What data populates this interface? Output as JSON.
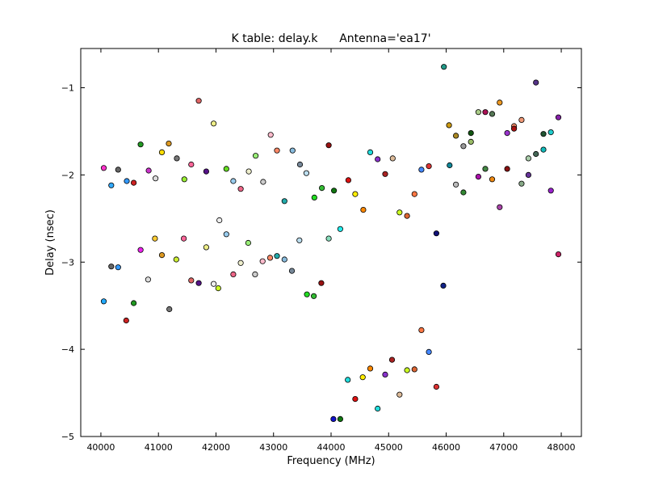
{
  "chart_data": {
    "type": "scatter",
    "title": "K table: delay.k      Antenna='ea17'",
    "xlabel": "Frequency (MHz)",
    "ylabel": "Delay (nsec)",
    "xlim": [
      39650,
      48350
    ],
    "ylim": [
      -5,
      -0.55
    ],
    "xticks": [
      40000,
      41000,
      42000,
      43000,
      44000,
      45000,
      46000,
      47000,
      48000
    ],
    "yticks": [
      -5,
      -4,
      -3,
      -2,
      -1
    ],
    "xtick_labels": [
      "40000",
      "41000",
      "42000",
      "43000",
      "44000",
      "45000",
      "46000",
      "47000",
      "48000"
    ],
    "ytick_labels": [
      "−5",
      "−4",
      "−3",
      "−2",
      "−1"
    ],
    "grid": false,
    "legend": "none",
    "points": [
      {
        "x": 40050,
        "y": -1.92,
        "color": "#ff33cc"
      },
      {
        "x": 40180,
        "y": -2.12,
        "color": "#33aaff"
      },
      {
        "x": 40300,
        "y": -1.94,
        "color": "#666666"
      },
      {
        "x": 40450,
        "y": -2.07,
        "color": "#3399ff"
      },
      {
        "x": 40570,
        "y": -2.09,
        "color": "#cc2222"
      },
      {
        "x": 40690,
        "y": -1.65,
        "color": "#229922"
      },
      {
        "x": 40830,
        "y": -1.95,
        "color": "#cc33cc"
      },
      {
        "x": 40950,
        "y": -2.04,
        "color": "#dddddd"
      },
      {
        "x": 41060,
        "y": -1.74,
        "color": "#ffdd00"
      },
      {
        "x": 41180,
        "y": -1.64,
        "color": "#dd9922"
      },
      {
        "x": 41320,
        "y": -1.81,
        "color": "#777777"
      },
      {
        "x": 41450,
        "y": -2.05,
        "color": "#99ee33"
      },
      {
        "x": 41570,
        "y": -1.88,
        "color": "#ff6699"
      },
      {
        "x": 41700,
        "y": -1.15,
        "color": "#e06666"
      },
      {
        "x": 41830,
        "y": -1.96,
        "color": "#551188"
      },
      {
        "x": 41960,
        "y": -1.41,
        "color": "#eeee88"
      },
      {
        "x": 42180,
        "y": -1.93,
        "color": "#66dd22"
      },
      {
        "x": 42300,
        "y": -2.07,
        "color": "#99ccee"
      },
      {
        "x": 42430,
        "y": -2.16,
        "color": "#ee6688"
      },
      {
        "x": 42570,
        "y": -1.96,
        "color": "#eeeecc"
      },
      {
        "x": 42690,
        "y": -1.78,
        "color": "#99ee77"
      },
      {
        "x": 42820,
        "y": -2.08,
        "color": "#cccccc"
      },
      {
        "x": 42950,
        "y": -1.54,
        "color": "#ffbbcc"
      },
      {
        "x": 43060,
        "y": -1.72,
        "color": "#ff8866"
      },
      {
        "x": 43190,
        "y": -2.3,
        "color": "#22aaaa"
      },
      {
        "x": 43330,
        "y": -1.72,
        "color": "#88bbdd"
      },
      {
        "x": 43460,
        "y": -1.88,
        "color": "#778899"
      },
      {
        "x": 43570,
        "y": -1.98,
        "color": "#bbddee"
      },
      {
        "x": 43710,
        "y": -2.26,
        "color": "#22dd22"
      },
      {
        "x": 43840,
        "y": -2.15,
        "color": "#33bb33"
      },
      {
        "x": 43960,
        "y": -1.66,
        "color": "#991111"
      },
      {
        "x": 44050,
        "y": -2.18,
        "color": "#117711"
      },
      {
        "x": 44300,
        "y": -2.06,
        "color": "#dd1111"
      },
      {
        "x": 44420,
        "y": -2.22,
        "color": "#ffee00"
      },
      {
        "x": 44560,
        "y": -2.4,
        "color": "#ff8800"
      },
      {
        "x": 44680,
        "y": -1.74,
        "color": "#22dddd"
      },
      {
        "x": 44810,
        "y": -1.82,
        "color": "#8833cc"
      },
      {
        "x": 44940,
        "y": -1.99,
        "color": "#aa2222"
      },
      {
        "x": 45070,
        "y": -1.81,
        "color": "#ddbb99"
      },
      {
        "x": 45190,
        "y": -2.43,
        "color": "#ccff22"
      },
      {
        "x": 45320,
        "y": -2.47,
        "color": "#dd6633"
      },
      {
        "x": 45450,
        "y": -2.22,
        "color": "#ff7744"
      },
      {
        "x": 45570,
        "y": -1.94,
        "color": "#4488ff"
      },
      {
        "x": 45700,
        "y": -1.9,
        "color": "#dd3333"
      },
      {
        "x": 45960,
        "y": -0.76,
        "color": "#229988"
      },
      {
        "x": 46050,
        "y": -1.43,
        "color": "#cc9911"
      },
      {
        "x": 46060,
        "y": -1.89,
        "color": "#118899"
      },
      {
        "x": 46170,
        "y": -1.55,
        "color": "#aa8822"
      },
      {
        "x": 46170,
        "y": -2.11,
        "color": "#bbbbbb"
      },
      {
        "x": 46300,
        "y": -1.67,
        "color": "#999999"
      },
      {
        "x": 46300,
        "y": -2.2,
        "color": "#338833"
      },
      {
        "x": 46430,
        "y": -1.52,
        "color": "#115511"
      },
      {
        "x": 46430,
        "y": -1.62,
        "color": "#99bb66"
      },
      {
        "x": 46560,
        "y": -1.28,
        "color": "#aacc88"
      },
      {
        "x": 46560,
        "y": -2.02,
        "color": "#aa11aa"
      },
      {
        "x": 46680,
        "y": -1.28,
        "color": "#aa1155"
      },
      {
        "x": 46680,
        "y": -1.93,
        "color": "#448844"
      },
      {
        "x": 46800,
        "y": -1.3,
        "color": "#557755"
      },
      {
        "x": 46800,
        "y": -2.05,
        "color": "#ee8811"
      },
      {
        "x": 46930,
        "y": -1.17,
        "color": "#ee9922"
      },
      {
        "x": 46930,
        "y": -2.37,
        "color": "#aa44aa"
      },
      {
        "x": 47060,
        "y": -1.52,
        "color": "#9933cc"
      },
      {
        "x": 47060,
        "y": -1.93,
        "color": "#881111"
      },
      {
        "x": 47180,
        "y": -1.44,
        "color": "#ee8866"
      },
      {
        "x": 47180,
        "y": -1.47,
        "color": "#aa1111"
      },
      {
        "x": 47310,
        "y": -1.37,
        "color": "#ee9977"
      },
      {
        "x": 47310,
        "y": -2.1,
        "color": "#88aa88"
      },
      {
        "x": 47430,
        "y": -1.81,
        "color": "#aaccaa"
      },
      {
        "x": 47430,
        "y": -2.0,
        "color": "#663399"
      },
      {
        "x": 47560,
        "y": -0.94,
        "color": "#553388"
      },
      {
        "x": 47560,
        "y": -1.76,
        "color": "#446655"
      },
      {
        "x": 47690,
        "y": -1.53,
        "color": "#225533"
      },
      {
        "x": 47690,
        "y": -1.71,
        "color": "#11bbbb"
      },
      {
        "x": 47820,
        "y": -1.51,
        "color": "#22cccc"
      },
      {
        "x": 47820,
        "y": -2.18,
        "color": "#9922cc"
      },
      {
        "x": 47950,
        "y": -1.34,
        "color": "#8822aa"
      },
      {
        "x": 47950,
        "y": -2.91,
        "color": "#cc2266"
      },
      {
        "x": 40050,
        "y": -3.45,
        "color": "#22aaff"
      },
      {
        "x": 40180,
        "y": -3.05,
        "color": "#666666"
      },
      {
        "x": 40300,
        "y": -3.06,
        "color": "#3399ff"
      },
      {
        "x": 40440,
        "y": -3.67,
        "color": "#cc2222"
      },
      {
        "x": 40570,
        "y": -3.47,
        "color": "#229922"
      },
      {
        "x": 40690,
        "y": -2.86,
        "color": "#ee22ee"
      },
      {
        "x": 40820,
        "y": -3.2,
        "color": "#dddddd"
      },
      {
        "x": 40940,
        "y": -2.73,
        "color": "#ffcc33"
      },
      {
        "x": 41060,
        "y": -2.92,
        "color": "#dd9922"
      },
      {
        "x": 41190,
        "y": -3.54,
        "color": "#777777"
      },
      {
        "x": 41310,
        "y": -2.97,
        "color": "#ccee33"
      },
      {
        "x": 41440,
        "y": -2.73,
        "color": "#ff6699"
      },
      {
        "x": 41570,
        "y": -3.21,
        "color": "#e06666"
      },
      {
        "x": 41700,
        "y": -3.24,
        "color": "#551188"
      },
      {
        "x": 41830,
        "y": -2.83,
        "color": "#eeee88"
      },
      {
        "x": 41960,
        "y": -3.25,
        "color": "#eeeeee"
      },
      {
        "x": 42040,
        "y": -3.3,
        "color": "#ccff22"
      },
      {
        "x": 42060,
        "y": -2.52,
        "color": "#eeeeee"
      },
      {
        "x": 42180,
        "y": -2.68,
        "color": "#99ccee"
      },
      {
        "x": 42300,
        "y": -3.14,
        "color": "#ee6688"
      },
      {
        "x": 42430,
        "y": -3.01,
        "color": "#eeeecc"
      },
      {
        "x": 42560,
        "y": -2.78,
        "color": "#99ee77"
      },
      {
        "x": 42680,
        "y": -3.14,
        "color": "#cccccc"
      },
      {
        "x": 42810,
        "y": -2.99,
        "color": "#ffbbcc"
      },
      {
        "x": 42940,
        "y": -2.95,
        "color": "#ff8866"
      },
      {
        "x": 43060,
        "y": -2.93,
        "color": "#22aaaa"
      },
      {
        "x": 43190,
        "y": -2.97,
        "color": "#88bbdd"
      },
      {
        "x": 43320,
        "y": -3.1,
        "color": "#778899"
      },
      {
        "x": 43450,
        "y": -2.75,
        "color": "#bbddee"
      },
      {
        "x": 43580,
        "y": -3.37,
        "color": "#22dd22"
      },
      {
        "x": 43700,
        "y": -3.39,
        "color": "#33bb33"
      },
      {
        "x": 43830,
        "y": -3.24,
        "color": "#991111"
      },
      {
        "x": 43960,
        "y": -2.73,
        "color": "#88ddbb"
      },
      {
        "x": 44040,
        "y": -4.8,
        "color": "#1111cc"
      },
      {
        "x": 44160,
        "y": -4.8,
        "color": "#117711"
      },
      {
        "x": 44160,
        "y": -2.62,
        "color": "#22eeee"
      },
      {
        "x": 44290,
        "y": -4.35,
        "color": "#22dddd"
      },
      {
        "x": 44420,
        "y": -4.57,
        "color": "#dd1111"
      },
      {
        "x": 44550,
        "y": -4.32,
        "color": "#ffee00"
      },
      {
        "x": 44680,
        "y": -4.22,
        "color": "#ff8800"
      },
      {
        "x": 44810,
        "y": -4.68,
        "color": "#22dddd"
      },
      {
        "x": 44940,
        "y": -4.29,
        "color": "#8833cc"
      },
      {
        "x": 45060,
        "y": -4.12,
        "color": "#aa2222"
      },
      {
        "x": 45190,
        "y": -4.52,
        "color": "#ddbb99"
      },
      {
        "x": 45320,
        "y": -4.24,
        "color": "#ccff22"
      },
      {
        "x": 45450,
        "y": -4.23,
        "color": "#dd6633"
      },
      {
        "x": 45570,
        "y": -3.78,
        "color": "#ff7744"
      },
      {
        "x": 45700,
        "y": -4.03,
        "color": "#4488ff"
      },
      {
        "x": 45830,
        "y": -4.43,
        "color": "#dd3333"
      },
      {
        "x": 45830,
        "y": -2.67,
        "color": "#111177"
      },
      {
        "x": 45950,
        "y": -3.27,
        "color": "#112288"
      }
    ]
  }
}
